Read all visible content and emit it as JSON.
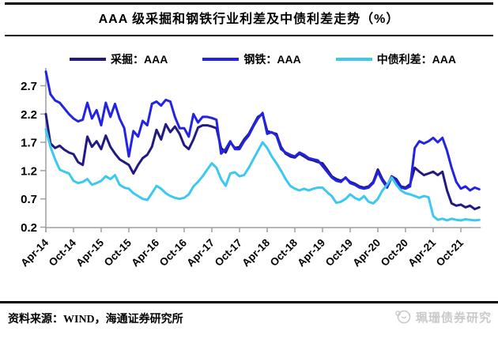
{
  "title": "AAA 级采掘和钢铁行业利差及中债利差走势（%）",
  "source_note": "资料来源：WIND，海通证券研究所",
  "watermark": "珮珊债券研究",
  "colors": {
    "mining": "#201a82",
    "steel": "#2223e3",
    "bond_spread": "#3cc8f0",
    "axis": "#9aa0a6",
    "text": "#000000",
    "watermark": "#c9c9c9"
  },
  "chart_data": {
    "type": "line",
    "title": "AAA 级采掘和钢铁行业利差及中债利差走势（%）",
    "ylabel": "",
    "xlabel": "",
    "ylim": [
      0.2,
      3.0
    ],
    "y_ticks": [
      0.2,
      0.7,
      1.2,
      1.7,
      2.2,
      2.7
    ],
    "x_frequency": "monthly",
    "x_start": "2014-04",
    "x_end": "2022-02",
    "x_tick_labels": [
      "Apr-14",
      "Oct-14",
      "Apr-15",
      "Oct-15",
      "Apr-16",
      "Oct-16",
      "Apr-17",
      "Oct-17",
      "Apr-18",
      "Oct-18",
      "Apr-19",
      "Oct-19",
      "Apr-20",
      "Oct-20",
      "Apr-21",
      "Oct-21"
    ],
    "x_tick_month_index": [
      0,
      6,
      12,
      18,
      24,
      30,
      36,
      42,
      48,
      54,
      60,
      66,
      72,
      78,
      84,
      90
    ],
    "legend_position": "top",
    "grid": false,
    "series": [
      {
        "name": "采掘：AAA",
        "key": "mining",
        "color": "#201a82",
        "values": [
          2.2,
          1.68,
          1.6,
          1.64,
          1.57,
          1.52,
          1.49,
          1.35,
          1.3,
          1.8,
          1.62,
          1.72,
          1.58,
          1.82,
          1.62,
          1.5,
          1.4,
          1.35,
          1.3,
          1.15,
          1.3,
          1.42,
          1.48,
          1.62,
          1.92,
          1.75,
          2.02,
          1.88,
          1.98,
          1.85,
          1.65,
          1.58,
          1.75,
          1.96,
          2.0,
          2.0,
          1.98,
          1.95,
          1.6,
          1.52,
          1.7,
          1.6,
          1.62,
          1.75,
          1.85,
          2.0,
          2.15,
          2.2,
          1.9,
          1.87,
          1.85,
          1.62,
          1.5,
          1.45,
          1.43,
          1.5,
          1.45,
          1.4,
          1.38,
          1.35,
          1.33,
          1.22,
          1.1,
          1.05,
          1.02,
          1.07,
          1.0,
          0.97,
          0.92,
          0.9,
          0.92,
          1.0,
          1.22,
          1.05,
          0.93,
          1.1,
          1.05,
          0.92,
          0.9,
          0.96,
          1.25,
          1.18,
          1.12,
          1.15,
          1.18,
          1.12,
          1.18,
          0.85,
          0.62,
          0.58,
          0.6,
          0.55,
          0.58,
          0.52,
          0.55
        ]
      },
      {
        "name": "钢铁：AAA",
        "key": "steel",
        "color": "#2223e3",
        "values": [
          2.95,
          2.55,
          2.44,
          2.4,
          2.3,
          2.2,
          2.12,
          2.07,
          2.1,
          2.4,
          2.12,
          2.27,
          2.0,
          2.4,
          2.15,
          2.38,
          2.12,
          1.95,
          1.45,
          1.9,
          1.8,
          2.08,
          2.0,
          2.38,
          2.42,
          2.35,
          2.45,
          2.42,
          2.15,
          1.95,
          1.95,
          1.8,
          2.2,
          2.05,
          2.15,
          2.15,
          2.13,
          2.1,
          1.5,
          1.58,
          1.72,
          1.58,
          1.58,
          1.72,
          1.82,
          1.98,
          2.12,
          2.22,
          1.85,
          1.88,
          1.82,
          1.58,
          1.52,
          1.48,
          1.45,
          1.52,
          1.48,
          1.42,
          1.4,
          1.38,
          1.28,
          1.18,
          1.08,
          1.02,
          1.0,
          1.08,
          0.98,
          0.95,
          0.9,
          0.88,
          0.9,
          0.98,
          1.18,
          1.02,
          0.9,
          1.08,
          1.02,
          0.9,
          0.88,
          0.92,
          1.6,
          1.72,
          1.68,
          1.72,
          1.78,
          1.7,
          1.78,
          1.55,
          1.25,
          1.0,
          0.88,
          0.92,
          0.85,
          0.9,
          0.87
        ]
      },
      {
        "name": "中债利差：AAA",
        "key": "bond_spread",
        "color": "#3cc8f0",
        "values": [
          1.93,
          1.62,
          1.4,
          1.22,
          1.18,
          1.15,
          1.02,
          0.98,
          1.0,
          1.05,
          0.95,
          0.98,
          1.02,
          1.1,
          1.05,
          1.12,
          0.95,
          0.9,
          0.88,
          0.8,
          0.75,
          0.7,
          0.68,
          0.8,
          0.93,
          0.88,
          0.8,
          0.75,
          0.72,
          0.7,
          0.72,
          0.78,
          0.92,
          1.0,
          1.1,
          1.22,
          1.33,
          1.25,
          1.05,
          0.93,
          1.15,
          1.17,
          1.1,
          1.12,
          1.25,
          1.4,
          1.55,
          1.7,
          1.6,
          1.45,
          1.33,
          1.2,
          1.05,
          0.93,
          0.88,
          0.85,
          0.88,
          0.85,
          0.88,
          0.9,
          0.9,
          0.82,
          0.75,
          0.63,
          0.65,
          0.7,
          0.78,
          0.72,
          0.68,
          0.75,
          0.65,
          0.62,
          0.7,
          0.85,
          0.95,
          1.08,
          0.95,
          0.85,
          0.8,
          0.78,
          0.75,
          0.72,
          0.75,
          0.73,
          0.4,
          0.33,
          0.35,
          0.32,
          0.35,
          0.33,
          0.32,
          0.34,
          0.33,
          0.32,
          0.33
        ]
      }
    ]
  }
}
